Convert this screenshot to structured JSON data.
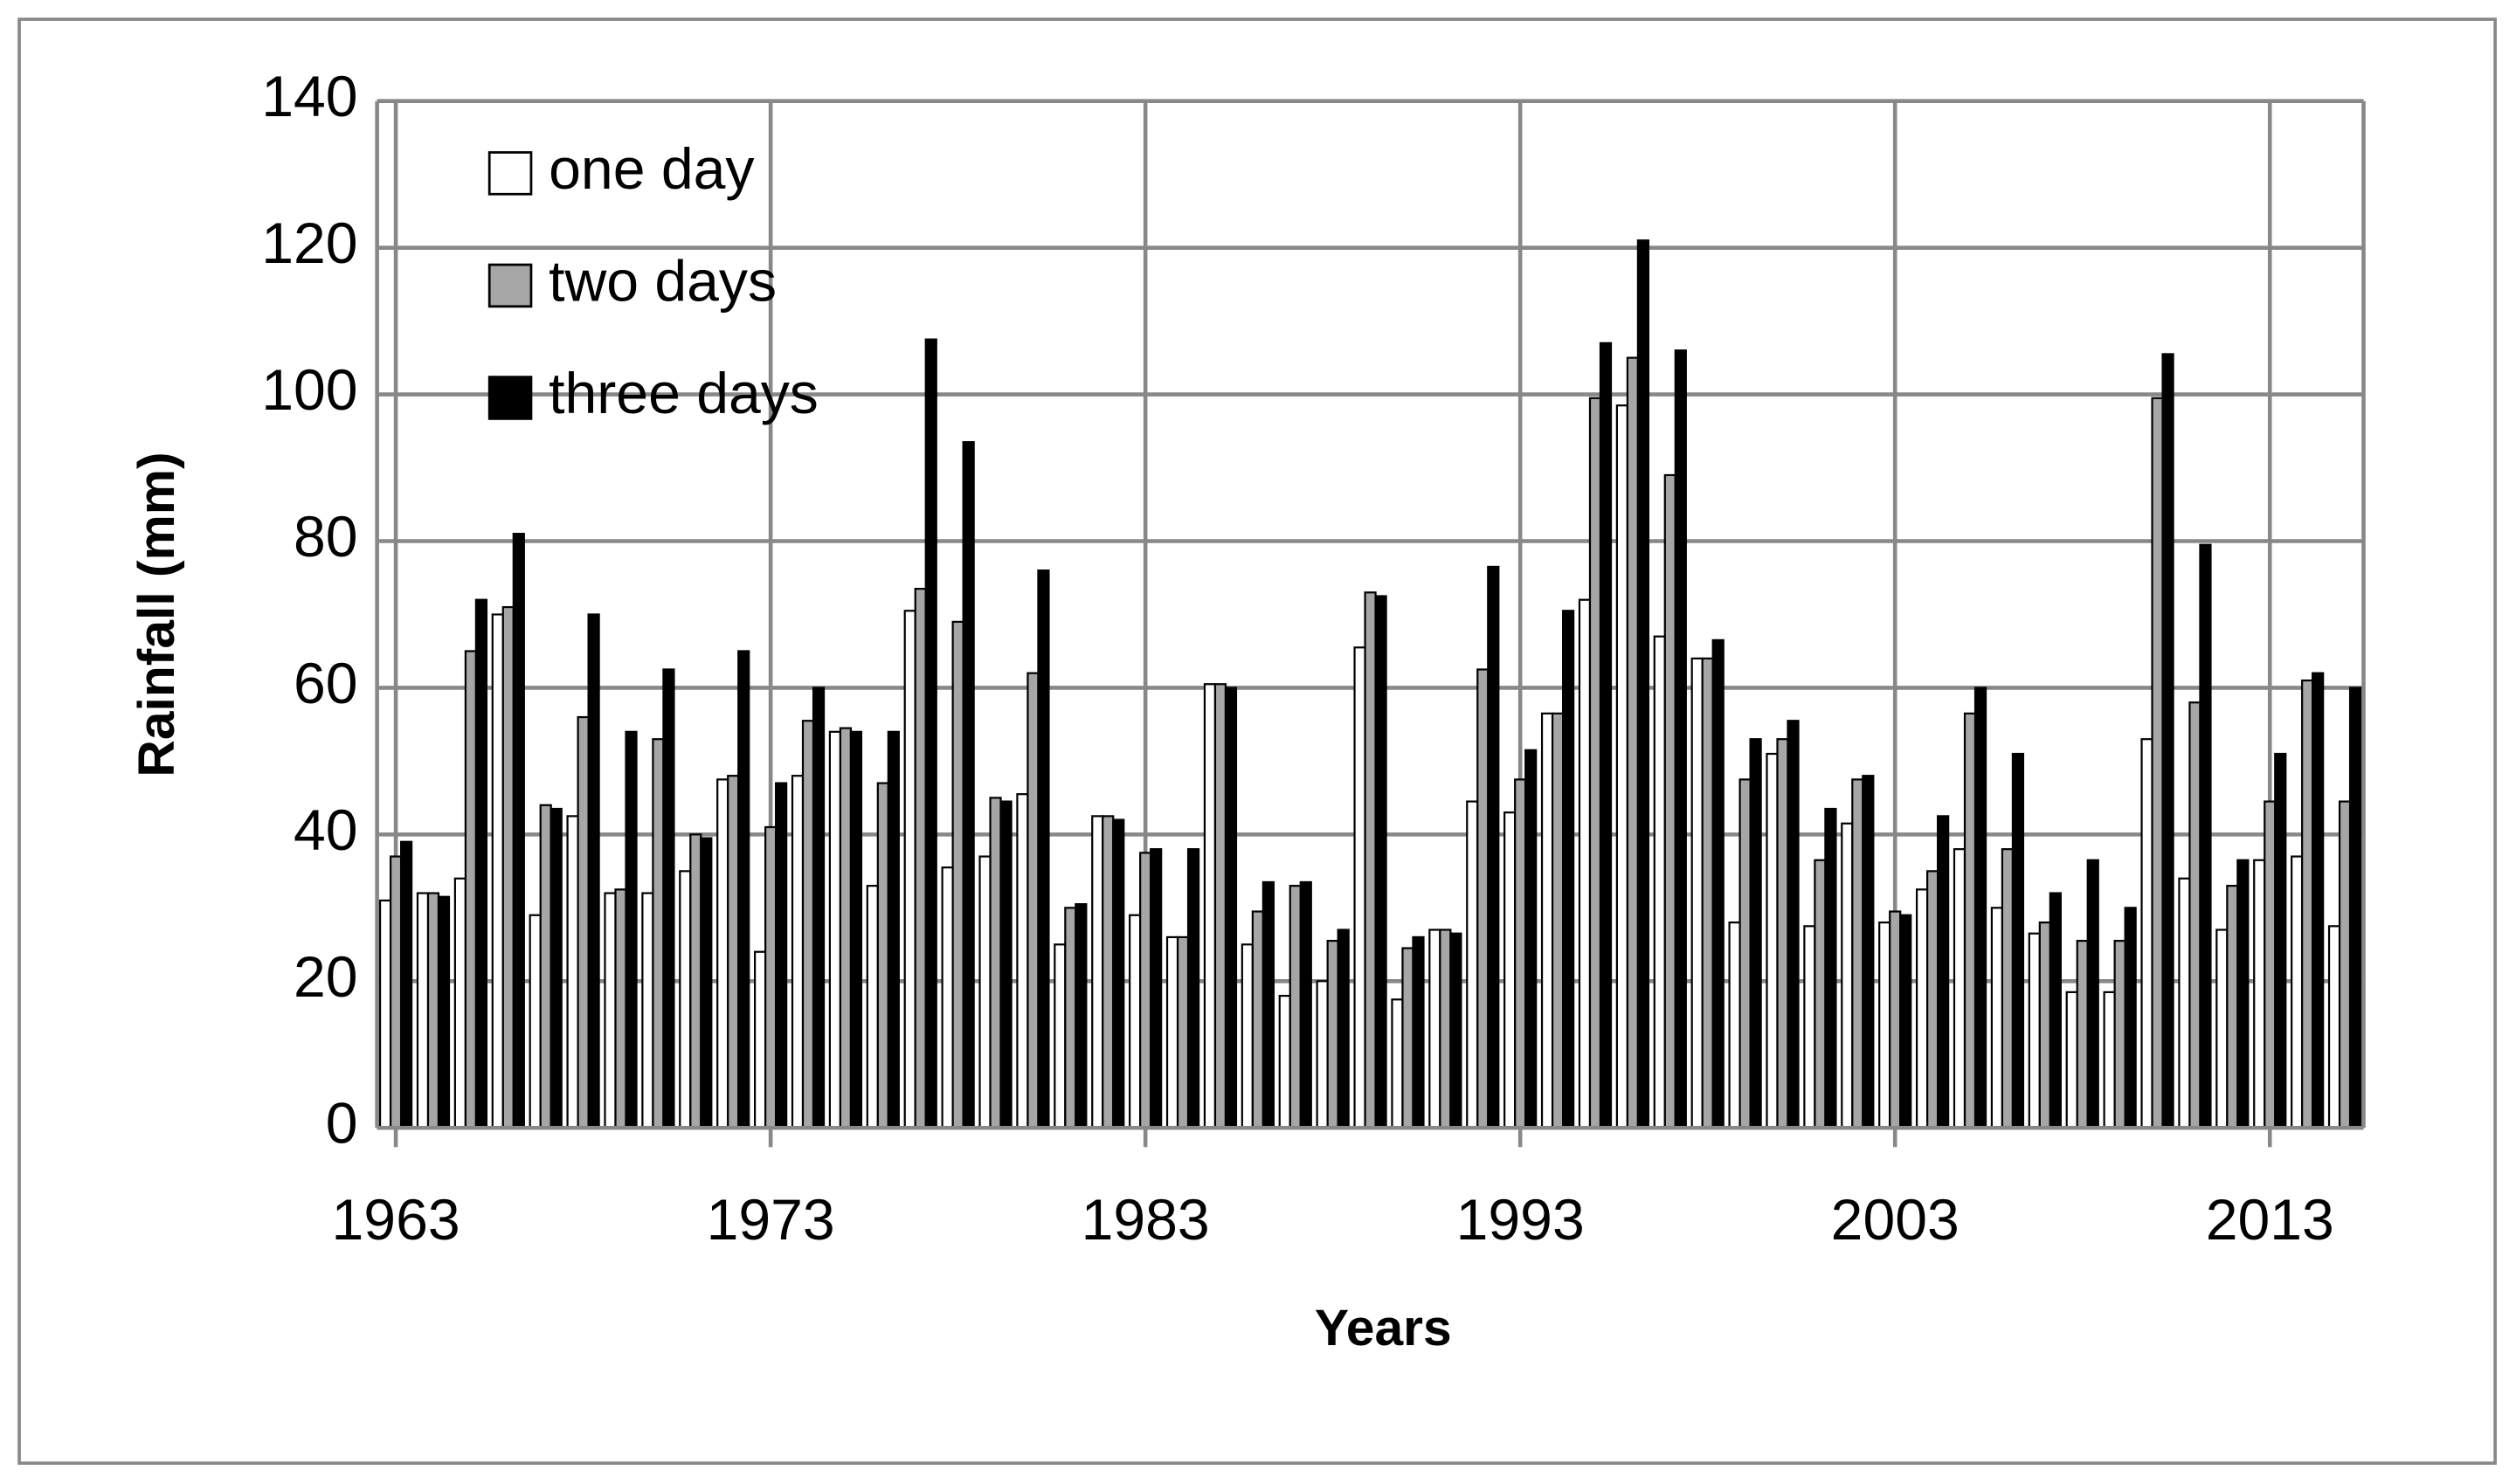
{
  "chart_data": {
    "type": "bar",
    "x_label": "Years",
    "y_label": "Rainfall (mm)",
    "categories": [
      "1963",
      null,
      null,
      null,
      null,
      null,
      null,
      null,
      null,
      null,
      "1973",
      null,
      null,
      null,
      null,
      null,
      null,
      null,
      null,
      null,
      "1983",
      null,
      null,
      null,
      null,
      null,
      null,
      null,
      null,
      null,
      "1993",
      null,
      null,
      null,
      null,
      null,
      null,
      null,
      null,
      null,
      "2003",
      null,
      null,
      null,
      null,
      null,
      null,
      null,
      null,
      null,
      "2013",
      null,
      null
    ],
    "series": [
      {
        "name": "one day",
        "color": "#ffffff",
        "values": [
          31,
          32,
          34,
          70,
          29,
          42.5,
          32,
          32,
          35,
          47.5,
          24,
          48,
          54,
          33,
          70.5,
          35.5,
          37,
          45.5,
          25,
          42.5,
          29,
          26,
          60.5,
          25,
          18,
          20,
          65.5,
          17.5,
          27,
          44.5,
          43,
          56.5,
          72,
          98.5,
          67,
          64,
          28,
          51,
          27.5,
          41.5,
          28,
          32.5,
          38,
          30,
          26.5,
          18.5,
          18.5,
          53,
          34,
          27,
          36.5,
          37,
          27.5
        ]
      },
      {
        "name": "two days",
        "color": "#a6a6a6",
        "values": [
          37,
          32,
          65,
          71,
          44,
          56,
          32.5,
          53,
          40,
          48,
          41,
          55.5,
          54.5,
          47,
          73.5,
          69,
          45,
          62,
          30,
          42.5,
          37.5,
          26,
          60.5,
          29.5,
          33,
          25.5,
          73,
          24.5,
          27,
          62.5,
          47.5,
          56.5,
          99.5,
          105,
          89,
          64,
          47.5,
          53,
          36.5,
          47.5,
          29.5,
          35,
          56.5,
          38,
          28,
          25.5,
          25.5,
          99.5,
          58,
          33,
          44.5,
          61,
          44.5
        ]
      },
      {
        "name": "three days",
        "color": "#000000",
        "values": [
          39,
          31.5,
          72,
          81,
          43.5,
          70,
          54,
          62.5,
          39.5,
          65,
          47,
          60,
          54,
          54,
          107.5,
          93.5,
          44.5,
          76,
          30.5,
          42,
          38,
          38,
          60,
          33.5,
          33.5,
          27,
          72.5,
          26,
          26.5,
          76.5,
          51.5,
          70.5,
          107,
          121,
          106,
          66.5,
          53,
          55.5,
          43.5,
          48,
          29,
          42.5,
          60,
          51,
          32,
          36.5,
          30,
          105.5,
          79.5,
          36.5,
          51,
          62,
          60
        ]
      }
    ],
    "ylim": [
      0,
      140
    ],
    "yticks": [
      0,
      20,
      40,
      60,
      80,
      100,
      120,
      140
    ],
    "grid": true,
    "legend": "upper left"
  }
}
